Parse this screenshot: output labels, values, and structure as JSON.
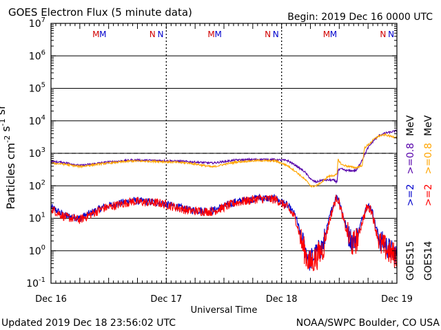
{
  "title": "GOES Electron Flux (5 minute data)",
  "begin_label": "Begin: 2019 Dec 16 0000 UTC",
  "updated_label": "Updated 2019 Dec 18 23:56:02 UTC",
  "credit_label": "NOAA/SWPC Boulder, CO USA",
  "chart_data": {
    "type": "line",
    "title": "GOES Electron Flux (5 minute data)",
    "xlabel": "Universal Time",
    "ylabel": "Particles cm^-2 s^-1 sr^-1",
    "yscale": "log",
    "ylim": [
      0.1,
      10000000
    ],
    "xlim": [
      0,
      3
    ],
    "x_unit": "days since 2019 Dec 16 0000 UTC",
    "x_ticks": [
      {
        "x": 0,
        "label": "Dec 16"
      },
      {
        "x": 1,
        "label": "Dec 17"
      },
      {
        "x": 2,
        "label": "Dec 18"
      },
      {
        "x": 3,
        "label": "Dec 19"
      }
    ],
    "y_ticks": [
      {
        "exp": -1,
        "base": "10",
        "sup": "-1"
      },
      {
        "exp": 0,
        "base": "10",
        "sup": "0"
      },
      {
        "exp": 1,
        "base": "10",
        "sup": "1"
      },
      {
        "exp": 2,
        "base": "10",
        "sup": "2"
      },
      {
        "exp": 3,
        "base": "10",
        "sup": "3"
      },
      {
        "exp": 4,
        "base": "10",
        "sup": "4"
      },
      {
        "exp": 5,
        "base": "10",
        "sup": "5"
      },
      {
        "exp": 6,
        "base": "10",
        "sup": "6"
      },
      {
        "exp": 7,
        "base": "10",
        "sup": "7"
      }
    ],
    "threshold": {
      "value": 1000,
      "style": "dashed"
    },
    "grid": "horizontal decades",
    "markers": [
      {
        "label": "M",
        "x": 0.39,
        "color": "#d00000"
      },
      {
        "label": "M",
        "x": 0.45,
        "color": "#0000cc"
      },
      {
        "label": "N",
        "x": 0.88,
        "color": "#d00000"
      },
      {
        "label": "N",
        "x": 0.95,
        "color": "#0000cc"
      },
      {
        "label": "M",
        "x": 1.39,
        "color": "#d00000"
      },
      {
        "label": "M",
        "x": 1.45,
        "color": "#0000cc"
      },
      {
        "label": "N",
        "x": 1.88,
        "color": "#d00000"
      },
      {
        "label": "N",
        "x": 1.95,
        "color": "#0000cc"
      },
      {
        "label": "M",
        "x": 2.39,
        "color": "#d00000"
      },
      {
        "label": "M",
        "x": 2.45,
        "color": "#0000cc"
      },
      {
        "label": "N",
        "x": 2.88,
        "color": "#d00000"
      },
      {
        "label": "N",
        "x": 2.95,
        "color": "#0000cc"
      }
    ],
    "legend_right": [
      {
        "sat": "GOES15",
        "items": [
          {
            "text": ">=2",
            "color": "#0000cc"
          },
          {
            "text": ">=0.8",
            "color": "#5500aa"
          },
          {
            "text": "MeV",
            "color": "#000000"
          }
        ]
      },
      {
        "sat": "GOES14",
        "items": [
          {
            "text": ">=2",
            "color": "#ff0000"
          },
          {
            "text": ">=0.8",
            "color": "#ffa500"
          },
          {
            "text": "MeV",
            "color": "#000000"
          }
        ]
      }
    ],
    "series": [
      {
        "name": "GOES15 >=0.8 MeV",
        "color": "#5500aa",
        "noise": 0.03,
        "x": [
          0,
          0.12,
          0.25,
          0.45,
          0.7,
          0.95,
          1.2,
          1.4,
          1.6,
          1.8,
          1.95,
          2.05,
          2.12,
          2.2,
          2.26,
          2.3,
          2.35,
          2.4,
          2.45,
          2.48,
          2.49,
          2.52,
          2.55,
          2.6,
          2.65,
          2.7,
          2.75,
          2.8,
          2.85,
          2.9,
          2.95,
          3
        ],
        "y": [
          560,
          520,
          420,
          520,
          620,
          600,
          550,
          500,
          620,
          650,
          640,
          600,
          430,
          270,
          150,
          130,
          150,
          150,
          150,
          130,
          300,
          330,
          300,
          290,
          300,
          650,
          1500,
          2500,
          3600,
          4200,
          4500,
          5000
        ]
      },
      {
        "name": "GOES14 >=0.8 MeV",
        "color": "#ffa500",
        "noise": 0.03,
        "x": [
          0,
          0.12,
          0.25,
          0.45,
          0.7,
          0.95,
          1.2,
          1.4,
          1.6,
          1.8,
          1.95,
          2.05,
          2.12,
          2.2,
          2.26,
          2.3,
          2.35,
          2.4,
          2.45,
          2.48,
          2.49,
          2.52,
          2.55,
          2.6,
          2.65,
          2.7,
          2.72,
          2.75,
          2.8,
          2.85,
          2.9,
          2.95,
          3
        ],
        "y": [
          500,
          460,
          390,
          480,
          580,
          560,
          500,
          380,
          540,
          600,
          580,
          420,
          280,
          160,
          95,
          100,
          130,
          190,
          210,
          220,
          650,
          450,
          420,
          380,
          360,
          430,
          1500,
          1800,
          2700,
          3500,
          3700,
          3300,
          3100
        ]
      },
      {
        "name": "GOES15 >=2 MeV",
        "color": "#0000cc",
        "noise": 0.12,
        "x": [
          0,
          0.12,
          0.25,
          0.45,
          0.7,
          0.95,
          1.2,
          1.4,
          1.6,
          1.8,
          1.95,
          2.05,
          2.12,
          2.18,
          2.24,
          2.3,
          2.36,
          2.42,
          2.46,
          2.48,
          2.5,
          2.54,
          2.58,
          2.62,
          2.66,
          2.7,
          2.74,
          2.78,
          2.82,
          2.86,
          2.9,
          2.95,
          3
        ],
        "y": [
          22,
          12,
          10,
          22,
          35,
          30,
          18,
          17,
          32,
          42,
          40,
          25,
          12,
          2,
          0.5,
          0.8,
          1.5,
          12,
          35,
          50,
          35,
          10,
          3,
          2,
          3,
          10,
          25,
          20,
          5,
          2,
          1.5,
          1,
          0.8
        ]
      },
      {
        "name": "GOES14 >=2 MeV",
        "color": "#ff0000",
        "noise": 0.14,
        "x": [
          0,
          0.12,
          0.25,
          0.45,
          0.7,
          0.95,
          1.2,
          1.4,
          1.6,
          1.8,
          1.95,
          2.05,
          2.12,
          2.18,
          2.24,
          2.3,
          2.36,
          2.42,
          2.46,
          2.48,
          2.5,
          2.54,
          2.58,
          2.62,
          2.66,
          2.7,
          2.74,
          2.78,
          2.82,
          2.86,
          2.9,
          2.95,
          3
        ],
        "y": [
          20,
          11,
          9,
          20,
          33,
          29,
          17,
          16,
          30,
          40,
          38,
          22,
          10,
          1.5,
          0.4,
          0.6,
          1.2,
          10,
          30,
          45,
          30,
          8,
          2.5,
          1.5,
          2.5,
          8,
          22,
          18,
          4,
          1.5,
          1.2,
          0.8,
          0.7
        ]
      }
    ]
  }
}
